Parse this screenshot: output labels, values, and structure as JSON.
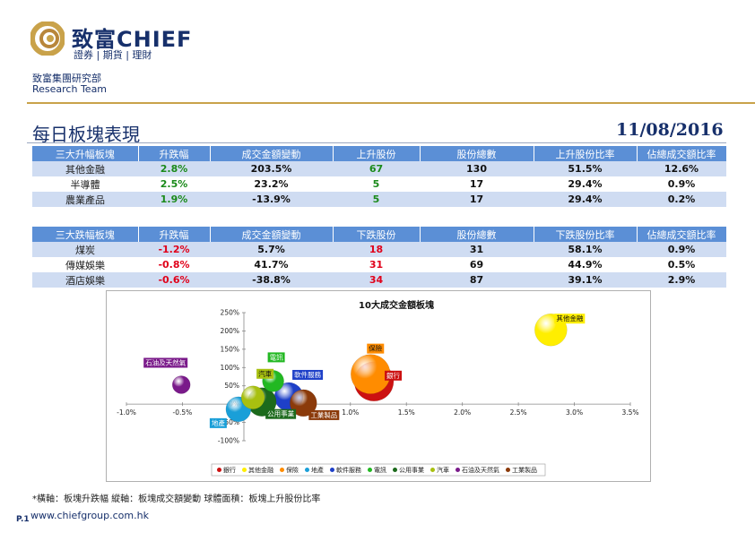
{
  "header": {
    "brand_name": "致富CHIEF",
    "brand_sub": "證券 | 期貨 | 理財",
    "department": "致富集團研究部",
    "department_en": "Research Team"
  },
  "report": {
    "title": "每日板塊表現",
    "date": "11/08/2016"
  },
  "top_table": {
    "headers": [
      "三大升幅板塊",
      "升跌幅",
      "成交金額變動",
      "上升股份",
      "股份總數",
      "上升股份比率",
      "佔總成交額比率"
    ],
    "rows": [
      [
        "其他金融",
        "2.8%",
        "203.5%",
        "67",
        "130",
        "51.5%",
        "12.6%"
      ],
      [
        "半導體",
        "2.5%",
        "23.2%",
        "5",
        "17",
        "29.4%",
        "0.9%"
      ],
      [
        "農業產品",
        "1.9%",
        "-13.9%",
        "5",
        "17",
        "29.4%",
        "0.2%"
      ]
    ]
  },
  "bottom_table": {
    "headers": [
      "三大跌幅板塊",
      "升跌幅",
      "成交金額變動",
      "下跌股份",
      "股份總數",
      "下跌股份比率",
      "佔總成交額比率"
    ],
    "rows": [
      [
        "煤炭",
        "-1.2%",
        "5.7%",
        "18",
        "31",
        "58.1%",
        "0.9%"
      ],
      [
        "傳媒娛樂",
        "-0.8%",
        "41.7%",
        "31",
        "69",
        "44.9%",
        "0.5%"
      ],
      [
        "酒店娛樂",
        "-0.6%",
        "-38.8%",
        "34",
        "87",
        "39.1%",
        "2.9%"
      ]
    ]
  },
  "chart_data": {
    "type": "scatter",
    "subtype": "bubble",
    "title": "10大成交金額板塊",
    "xlim": [
      -0.01,
      0.035
    ],
    "ylim": [
      -1.0,
      2.5
    ],
    "x_ticks": [
      "-1.0%",
      "-0.5%",
      "0.0%",
      "0.5%",
      "1.0%",
      "1.5%",
      "2.0%",
      "2.5%",
      "3.0%",
      "3.5%"
    ],
    "y_ticks": [
      "-100%",
      "-50%",
      "0%",
      "50%",
      "100%",
      "150%",
      "200%",
      "250%"
    ],
    "legend_position": "bottom",
    "series": [
      {
        "name": "銀行",
        "x": 0.0121,
        "y": 0.62,
        "size": 22,
        "color": "#cc1111"
      },
      {
        "name": "其他金融",
        "x": 0.0279,
        "y": 2.03,
        "size": 18,
        "color": "#ffee00"
      },
      {
        "name": "保險",
        "x": 0.0118,
        "y": 0.82,
        "size": 22,
        "color": "#ff8c00"
      },
      {
        "name": "地產",
        "x": 0.0,
        "y": -0.14,
        "size": 14,
        "color": "#1a9fd8"
      },
      {
        "name": "軟件服務",
        "x": 0.0045,
        "y": 0.2,
        "size": 16,
        "color": "#1e40c8"
      },
      {
        "name": "電訊",
        "x": 0.0031,
        "y": 0.63,
        "size": 12,
        "color": "#22b822"
      },
      {
        "name": "公用事業",
        "x": 0.0021,
        "y": 0.06,
        "size": 16,
        "color": "#1c6a1c"
      },
      {
        "name": "汽車",
        "x": 0.0013,
        "y": 0.18,
        "size": 13,
        "color": "#a8c010"
      },
      {
        "name": "石油及天然氣",
        "x": -0.0051,
        "y": 0.53,
        "size": 10,
        "color": "#7a1a8a"
      },
      {
        "name": "工業製品",
        "x": 0.0058,
        "y": 0.03,
        "size": 15,
        "color": "#8b3a0a"
      }
    ]
  },
  "footnote": "*橫軸：板塊升跌幅    縱軸：板塊成交額變動    球體面積：板塊上升股份比率",
  "footer": {
    "page": "P.1",
    "website": "www.chiefgroup.com.hk"
  }
}
